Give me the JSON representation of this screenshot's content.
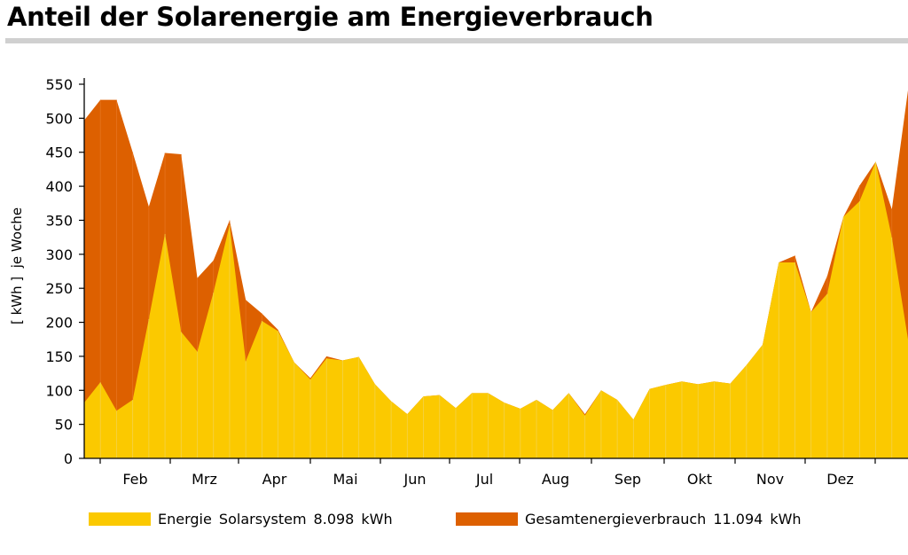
{
  "title": "Anteil der Solarenergie am Energieverbrauch",
  "chart_data": {
    "type": "area",
    "ylabel": "[ kWh ]  je Woche",
    "ylim": [
      0,
      550
    ],
    "yticks": [
      0,
      50,
      100,
      150,
      200,
      250,
      300,
      350,
      400,
      450,
      500,
      550
    ],
    "month_labels": [
      "Feb",
      "Mrz",
      "Apr",
      "Mai",
      "Jun",
      "Jul",
      "Aug",
      "Sep",
      "Okt",
      "Nov",
      "Dez"
    ],
    "grid": false,
    "legend_placement": "bottom",
    "x_unit": "week",
    "series": [
      {
        "name": "Gesamtenergieverbrauch",
        "total_label": "11.094",
        "unit": "kWh",
        "color": "#dd6000",
        "values": [
          497,
          527,
          527,
          450,
          370,
          449,
          447,
          265,
          291,
          350,
          233,
          213,
          189,
          141,
          118,
          150,
          144,
          149,
          109,
          84,
          65,
          91,
          93,
          74,
          96,
          96,
          82,
          73,
          86,
          71,
          96,
          65,
          100,
          86,
          57,
          102,
          108,
          113,
          109,
          113,
          110,
          137,
          167,
          288,
          298,
          215,
          268,
          355,
          401,
          436,
          366,
          541
        ]
      },
      {
        "name": "Energie  Solarsystem",
        "total_label": "8.098",
        "unit": "kWh",
        "color": "#fbc900",
        "values": [
          82,
          112,
          70,
          86,
          205,
          330,
          186,
          157,
          244,
          343,
          143,
          202,
          187,
          141,
          116,
          147,
          144,
          149,
          109,
          84,
          65,
          91,
          93,
          74,
          96,
          96,
          82,
          73,
          86,
          71,
          96,
          63,
          100,
          86,
          57,
          102,
          108,
          113,
          109,
          113,
          110,
          137,
          167,
          288,
          288,
          215,
          242,
          355,
          378,
          436,
          325,
          175
        ]
      }
    ]
  }
}
